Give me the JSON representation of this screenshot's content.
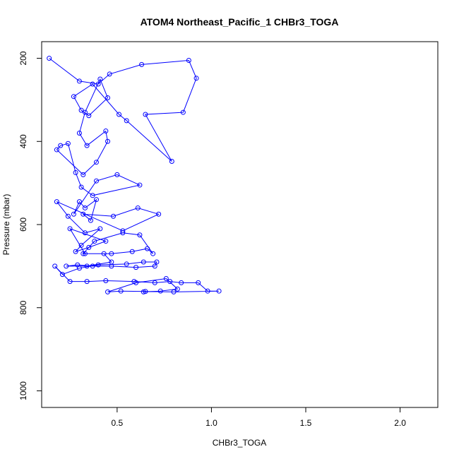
{
  "chart_data": {
    "type": "scatter",
    "title": "ATOM4 Northeast_Pacific_1 CHBr3_TOGA",
    "xlabel": "CHBr3_TOGA",
    "ylabel": "Pressure (mbar)",
    "xlim": [
      0.1,
      2.2
    ],
    "ylim": [
      1040,
      160
    ],
    "y_reversed": true,
    "x_ticks": [
      0.5,
      1.0,
      1.5,
      2.0
    ],
    "x_tick_labels": [
      "0.5",
      "1.0",
      "1.5",
      "2.0"
    ],
    "y_ticks": [
      200,
      400,
      600,
      800,
      1000
    ],
    "y_tick_labels": [
      "200",
      "400",
      "600",
      "800",
      "1000"
    ],
    "grid": false,
    "series": [
      {
        "color": "#0000ff",
        "marker": "open-circle",
        "line": true,
        "x": [
          0.14,
          0.3,
          0.4,
          0.46,
          0.63,
          0.88,
          0.92,
          0.85,
          0.65,
          0.79,
          0.55,
          0.51,
          0.37,
          0.27,
          0.31,
          0.35,
          0.45,
          0.41,
          0.33,
          0.3,
          0.34,
          0.44,
          0.45,
          0.39,
          0.32,
          0.18,
          0.2,
          0.24,
          0.28,
          0.31,
          0.37,
          0.62,
          0.5,
          0.39,
          0.27,
          0.3,
          0.33,
          0.39,
          0.36,
          0.32,
          0.48,
          0.61,
          0.72,
          0.53,
          0.18,
          0.24,
          0.33,
          0.41,
          0.31,
          0.28,
          0.35,
          0.44,
          0.25,
          0.33,
          0.47,
          0.58,
          0.66,
          0.69,
          0.62,
          0.53,
          0.38,
          0.32,
          0.43,
          0.47,
          0.34,
          0.23,
          0.29,
          0.37,
          0.47,
          0.6,
          0.7,
          0.71,
          0.64,
          0.55,
          0.4,
          0.3,
          0.21,
          0.17,
          0.25,
          0.34,
          0.44,
          0.59,
          0.7,
          0.78,
          0.84,
          0.93,
          0.98,
          1.04,
          0.8,
          0.65,
          0.52,
          0.45,
          0.6,
          0.76,
          0.82,
          0.73,
          0.64
        ],
        "y": [
          200,
          255,
          262,
          238,
          215,
          205,
          248,
          330,
          335,
          448,
          350,
          335,
          262,
          292,
          325,
          338,
          295,
          250,
          330,
          380,
          410,
          375,
          400,
          450,
          480,
          420,
          410,
          405,
          475,
          510,
          530,
          505,
          480,
          495,
          575,
          545,
          560,
          540,
          590,
          575,
          580,
          560,
          575,
          615,
          545,
          580,
          620,
          610,
          650,
          665,
          655,
          640,
          610,
          670,
          670,
          665,
          658,
          670,
          625,
          620,
          640,
          670,
          670,
          690,
          700,
          700,
          697,
          700,
          700,
          703,
          700,
          690,
          690,
          695,
          697,
          705,
          720,
          700,
          737,
          737,
          735,
          737,
          740,
          737,
          740,
          740,
          760,
          760,
          762,
          761,
          760,
          762,
          740,
          730,
          755,
          760,
          762
        ]
      }
    ]
  }
}
